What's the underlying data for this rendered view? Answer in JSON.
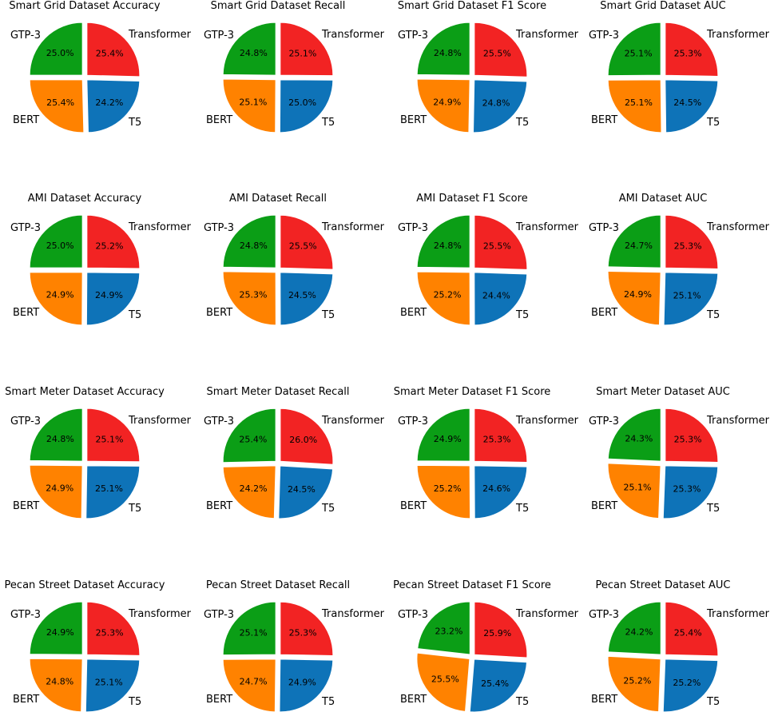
{
  "chart_data": [
    {
      "type": "pie",
      "title": "Smart Grid Dataset Accuracy",
      "labels": [
        "Transformer",
        "GTP-3",
        "BERT",
        "T5"
      ],
      "values": [
        25.4,
        24.2,
        25.4,
        25.0
      ],
      "colors": [
        "#f22323",
        "#0e73b8",
        "#ff8200",
        "#0b9e16"
      ]
    },
    {
      "type": "pie",
      "title": "Smart Grid Dataset Recall",
      "labels": [
        "Transformer",
        "GTP-3",
        "BERT",
        "T5"
      ],
      "values": [
        25.1,
        25.0,
        25.1,
        24.8
      ],
      "colors": [
        "#f22323",
        "#0e73b8",
        "#ff8200",
        "#0b9e16"
      ]
    },
    {
      "type": "pie",
      "title": "Smart Grid Dataset F1 Score",
      "labels": [
        "Transformer",
        "GTP-3",
        "BERT",
        "T5"
      ],
      "values": [
        25.5,
        24.8,
        24.9,
        24.8
      ],
      "colors": [
        "#f22323",
        "#0e73b8",
        "#ff8200",
        "#0b9e16"
      ]
    },
    {
      "type": "pie",
      "title": "Smart Grid Dataset AUC",
      "labels": [
        "Transformer",
        "GTP-3",
        "BERT",
        "T5"
      ],
      "values": [
        25.3,
        24.5,
        25.1,
        25.1
      ],
      "colors": [
        "#f22323",
        "#0e73b8",
        "#ff8200",
        "#0b9e16"
      ]
    },
    {
      "type": "pie",
      "title": "AMI Dataset Accuracy",
      "labels": [
        "Transformer",
        "GTP-3",
        "BERT",
        "T5"
      ],
      "values": [
        25.2,
        24.9,
        24.9,
        25.0
      ],
      "colors": [
        "#f22323",
        "#0e73b8",
        "#ff8200",
        "#0b9e16"
      ]
    },
    {
      "type": "pie",
      "title": "AMI Dataset Recall",
      "labels": [
        "Transformer",
        "GTP-3",
        "BERT",
        "T5"
      ],
      "values": [
        25.5,
        24.5,
        25.3,
        24.8
      ],
      "colors": [
        "#f22323",
        "#0e73b8",
        "#ff8200",
        "#0b9e16"
      ]
    },
    {
      "type": "pie",
      "title": "AMI Dataset F1 Score",
      "labels": [
        "Transformer",
        "GTP-3",
        "BERT",
        "T5"
      ],
      "values": [
        25.5,
        24.4,
        25.2,
        24.8
      ],
      "colors": [
        "#f22323",
        "#0e73b8",
        "#ff8200",
        "#0b9e16"
      ]
    },
    {
      "type": "pie",
      "title": "AMI Dataset AUC",
      "labels": [
        "Transformer",
        "GTP-3",
        "BERT",
        "T5"
      ],
      "values": [
        25.3,
        25.1,
        24.9,
        24.7
      ],
      "colors": [
        "#f22323",
        "#0e73b8",
        "#ff8200",
        "#0b9e16"
      ]
    },
    {
      "type": "pie",
      "title": "Smart Meter Dataset Accuracy",
      "labels": [
        "Transformer",
        "GTP-3",
        "BERT",
        "T5"
      ],
      "values": [
        25.1,
        25.1,
        24.9,
        24.8
      ],
      "colors": [
        "#f22323",
        "#0e73b8",
        "#ff8200",
        "#0b9e16"
      ]
    },
    {
      "type": "pie",
      "title": "Smart Meter Dataset Recall",
      "labels": [
        "Transformer",
        "GTP-3",
        "BERT",
        "T5"
      ],
      "values": [
        26.0,
        24.5,
        24.2,
        25.4
      ],
      "colors": [
        "#f22323",
        "#0e73b8",
        "#ff8200",
        "#0b9e16"
      ]
    },
    {
      "type": "pie",
      "title": "Smart Meter Dataset F1 Score",
      "labels": [
        "Transformer",
        "GTP-3",
        "BERT",
        "T5"
      ],
      "values": [
        25.3,
        24.6,
        25.2,
        24.9
      ],
      "colors": [
        "#f22323",
        "#0e73b8",
        "#ff8200",
        "#0b9e16"
      ]
    },
    {
      "type": "pie",
      "title": "Smart Meter Dataset AUC",
      "labels": [
        "Transformer",
        "GTP-3",
        "BERT",
        "T5"
      ],
      "values": [
        25.3,
        25.3,
        25.1,
        24.3
      ],
      "colors": [
        "#f22323",
        "#0e73b8",
        "#ff8200",
        "#0b9e16"
      ]
    },
    {
      "type": "pie",
      "title": "Pecan Street Dataset Accuracy",
      "labels": [
        "Transformer",
        "GTP-3",
        "BERT",
        "T5"
      ],
      "values": [
        25.3,
        25.1,
        24.8,
        24.9
      ],
      "colors": [
        "#f22323",
        "#0e73b8",
        "#ff8200",
        "#0b9e16"
      ]
    },
    {
      "type": "pie",
      "title": "Pecan Street Dataset Recall",
      "labels": [
        "Transformer",
        "GTP-3",
        "BERT",
        "T5"
      ],
      "values": [
        25.3,
        24.9,
        24.7,
        25.1
      ],
      "colors": [
        "#f22323",
        "#0e73b8",
        "#ff8200",
        "#0b9e16"
      ]
    },
    {
      "type": "pie",
      "title": "Pecan Street Dataset F1 Score",
      "labels": [
        "Transformer",
        "GTP-3",
        "BERT",
        "T5"
      ],
      "values": [
        25.9,
        25.4,
        25.5,
        23.2
      ],
      "colors": [
        "#f22323",
        "#0e73b8",
        "#ff8200",
        "#0b9e16"
      ]
    },
    {
      "type": "pie",
      "title": "Pecan Street Dataset AUC",
      "labels": [
        "Transformer",
        "GTP-3",
        "BERT",
        "T5"
      ],
      "values": [
        25.4,
        25.2,
        25.2,
        24.2
      ],
      "colors": [
        "#f22323",
        "#0e73b8",
        "#ff8200",
        "#0b9e16"
      ]
    }
  ]
}
